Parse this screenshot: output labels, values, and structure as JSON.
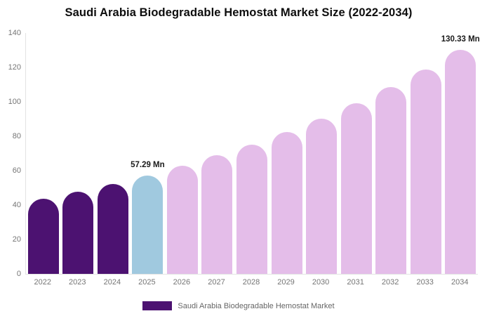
{
  "title": "Saudi Arabia Biodegradable Hemostat Market Size (2022-2034)",
  "chart_data": {
    "type": "bar",
    "title": "Saudi Arabia Biodegradable Hemostat Market Size (2022-2034)",
    "categories": [
      "2022",
      "2023",
      "2024",
      "2025",
      "2026",
      "2027",
      "2028",
      "2029",
      "2030",
      "2031",
      "2032",
      "2033",
      "2034"
    ],
    "values": [
      43.6,
      47.7,
      52.3,
      57.29,
      62.8,
      68.8,
      75.3,
      82.6,
      90.4,
      99.1,
      108.6,
      118.9,
      130.33
    ],
    "bar_roles": [
      "historical",
      "historical",
      "historical",
      "current",
      "forecast",
      "forecast",
      "forecast",
      "forecast",
      "forecast",
      "forecast",
      "forecast",
      "forecast",
      "forecast"
    ],
    "xlabel": "",
    "ylabel": "",
    "ylim": [
      0,
      140
    ],
    "yticks": [
      0,
      20,
      40,
      60,
      80,
      100,
      120,
      140
    ],
    "grid": false,
    "legend_position": "bottom",
    "annotations": [
      {
        "category": "2025",
        "text": "57.29 Mn"
      },
      {
        "category": "2034",
        "text": "130.33 Mn"
      }
    ]
  },
  "legend": {
    "label": "Saudi Arabia Biodegradable Hemostat Market"
  },
  "colors": {
    "historical": "#4C1271",
    "current": "#A0C9DF",
    "forecast": "#E4BDE9",
    "axis_text": "#757575",
    "legend_text": "#666666",
    "annotation_text": "#1a1a1a",
    "axis_line": "#e3e3e3",
    "title_text": "#0d0d0d",
    "background": "#ffffff"
  }
}
